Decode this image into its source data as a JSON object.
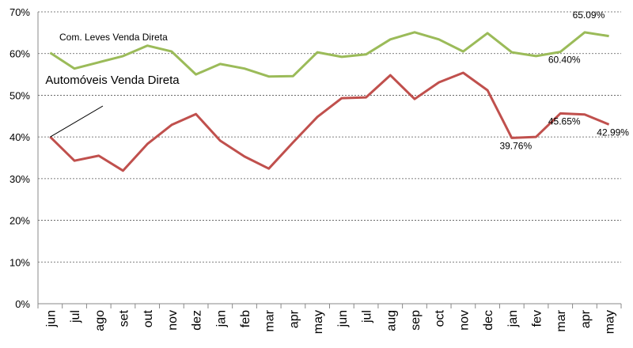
{
  "chart_data": {
    "type": "line",
    "categories": [
      "jun",
      "jul",
      "ago",
      "set",
      "out",
      "nov",
      "dez",
      "jan",
      "feb",
      "mar",
      "apr",
      "may",
      "jun",
      "jul",
      "aug",
      "sep",
      "oct",
      "nov",
      "dec",
      "jan",
      "fev",
      "mar",
      "apr",
      "may"
    ],
    "series": [
      {
        "name": "Com. Leves Venda Direta",
        "color": "#9bbb59",
        "values": [
          60.2,
          56.4,
          57.9,
          59.4,
          61.9,
          60.5,
          55.0,
          57.5,
          56.4,
          54.5,
          54.6,
          60.3,
          59.2,
          59.8,
          63.4,
          65.1,
          63.4,
          60.5,
          64.9,
          60.3,
          59.4,
          60.4,
          65.09,
          64.2
        ],
        "value_labels": [
          null,
          null,
          null,
          null,
          null,
          null,
          null,
          null,
          null,
          null,
          null,
          null,
          null,
          null,
          null,
          null,
          null,
          null,
          null,
          null,
          null,
          "60.40%",
          "65.09%",
          null
        ]
      },
      {
        "name": "Automóveis Venda Direta",
        "color": "#c0504d",
        "values": [
          40.0,
          34.3,
          35.5,
          31.9,
          38.3,
          42.9,
          45.5,
          39.1,
          35.3,
          32.4,
          38.7,
          44.8,
          49.3,
          49.5,
          54.8,
          49.1,
          53.1,
          55.4,
          51.2,
          39.76,
          40.0,
          45.65,
          45.4,
          42.99
        ],
        "value_labels": [
          null,
          null,
          null,
          null,
          null,
          null,
          null,
          null,
          null,
          null,
          null,
          null,
          null,
          null,
          null,
          null,
          null,
          null,
          null,
          "39.76%",
          null,
          "45.65%",
          null,
          "42.99%"
        ]
      }
    ],
    "ylim": [
      0,
      70
    ],
    "yticks": [
      {
        "value": 0,
        "label": "0%"
      },
      {
        "value": 10,
        "label": "10%"
      },
      {
        "value": 20,
        "label": "20%"
      },
      {
        "value": 30,
        "label": "30%"
      },
      {
        "value": 40,
        "label": "40%"
      },
      {
        "value": 50,
        "label": "50%"
      },
      {
        "value": 60,
        "label": "60%"
      },
      {
        "value": 70,
        "label": "70%"
      }
    ],
    "grid": true
  }
}
